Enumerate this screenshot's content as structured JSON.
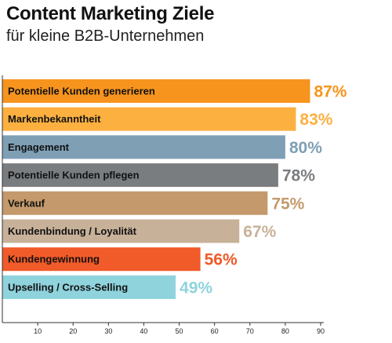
{
  "chart_data": {
    "type": "bar",
    "orientation": "horizontal",
    "title": "Content Marketing Ziele",
    "subtitle": "für kleine B2B-Unternehmen",
    "categories": [
      "Potentielle Kunden generieren",
      "Markenbekanntheit",
      "Engagement",
      "Potentielle Kunden pflegen",
      "Verkauf",
      "Kundenbindung / Loyalität",
      "Kundengewinnung",
      "Upselling / Cross-Selling"
    ],
    "values": [
      87,
      83,
      80,
      78,
      75,
      67,
      56,
      49
    ],
    "value_labels": [
      "87%",
      "83%",
      "80%",
      "78%",
      "75%",
      "67%",
      "56%",
      "49%"
    ],
    "colors": [
      "#f7941d",
      "#fbb040",
      "#7f9fb5",
      "#7a7d80",
      "#c49a6c",
      "#c7b299",
      "#f15a29",
      "#8fd3dc"
    ],
    "xlim": [
      0,
      90
    ],
    "xticks": [
      10,
      20,
      30,
      40,
      50,
      60,
      70,
      80,
      90
    ],
    "grid": false,
    "legend": "none"
  }
}
